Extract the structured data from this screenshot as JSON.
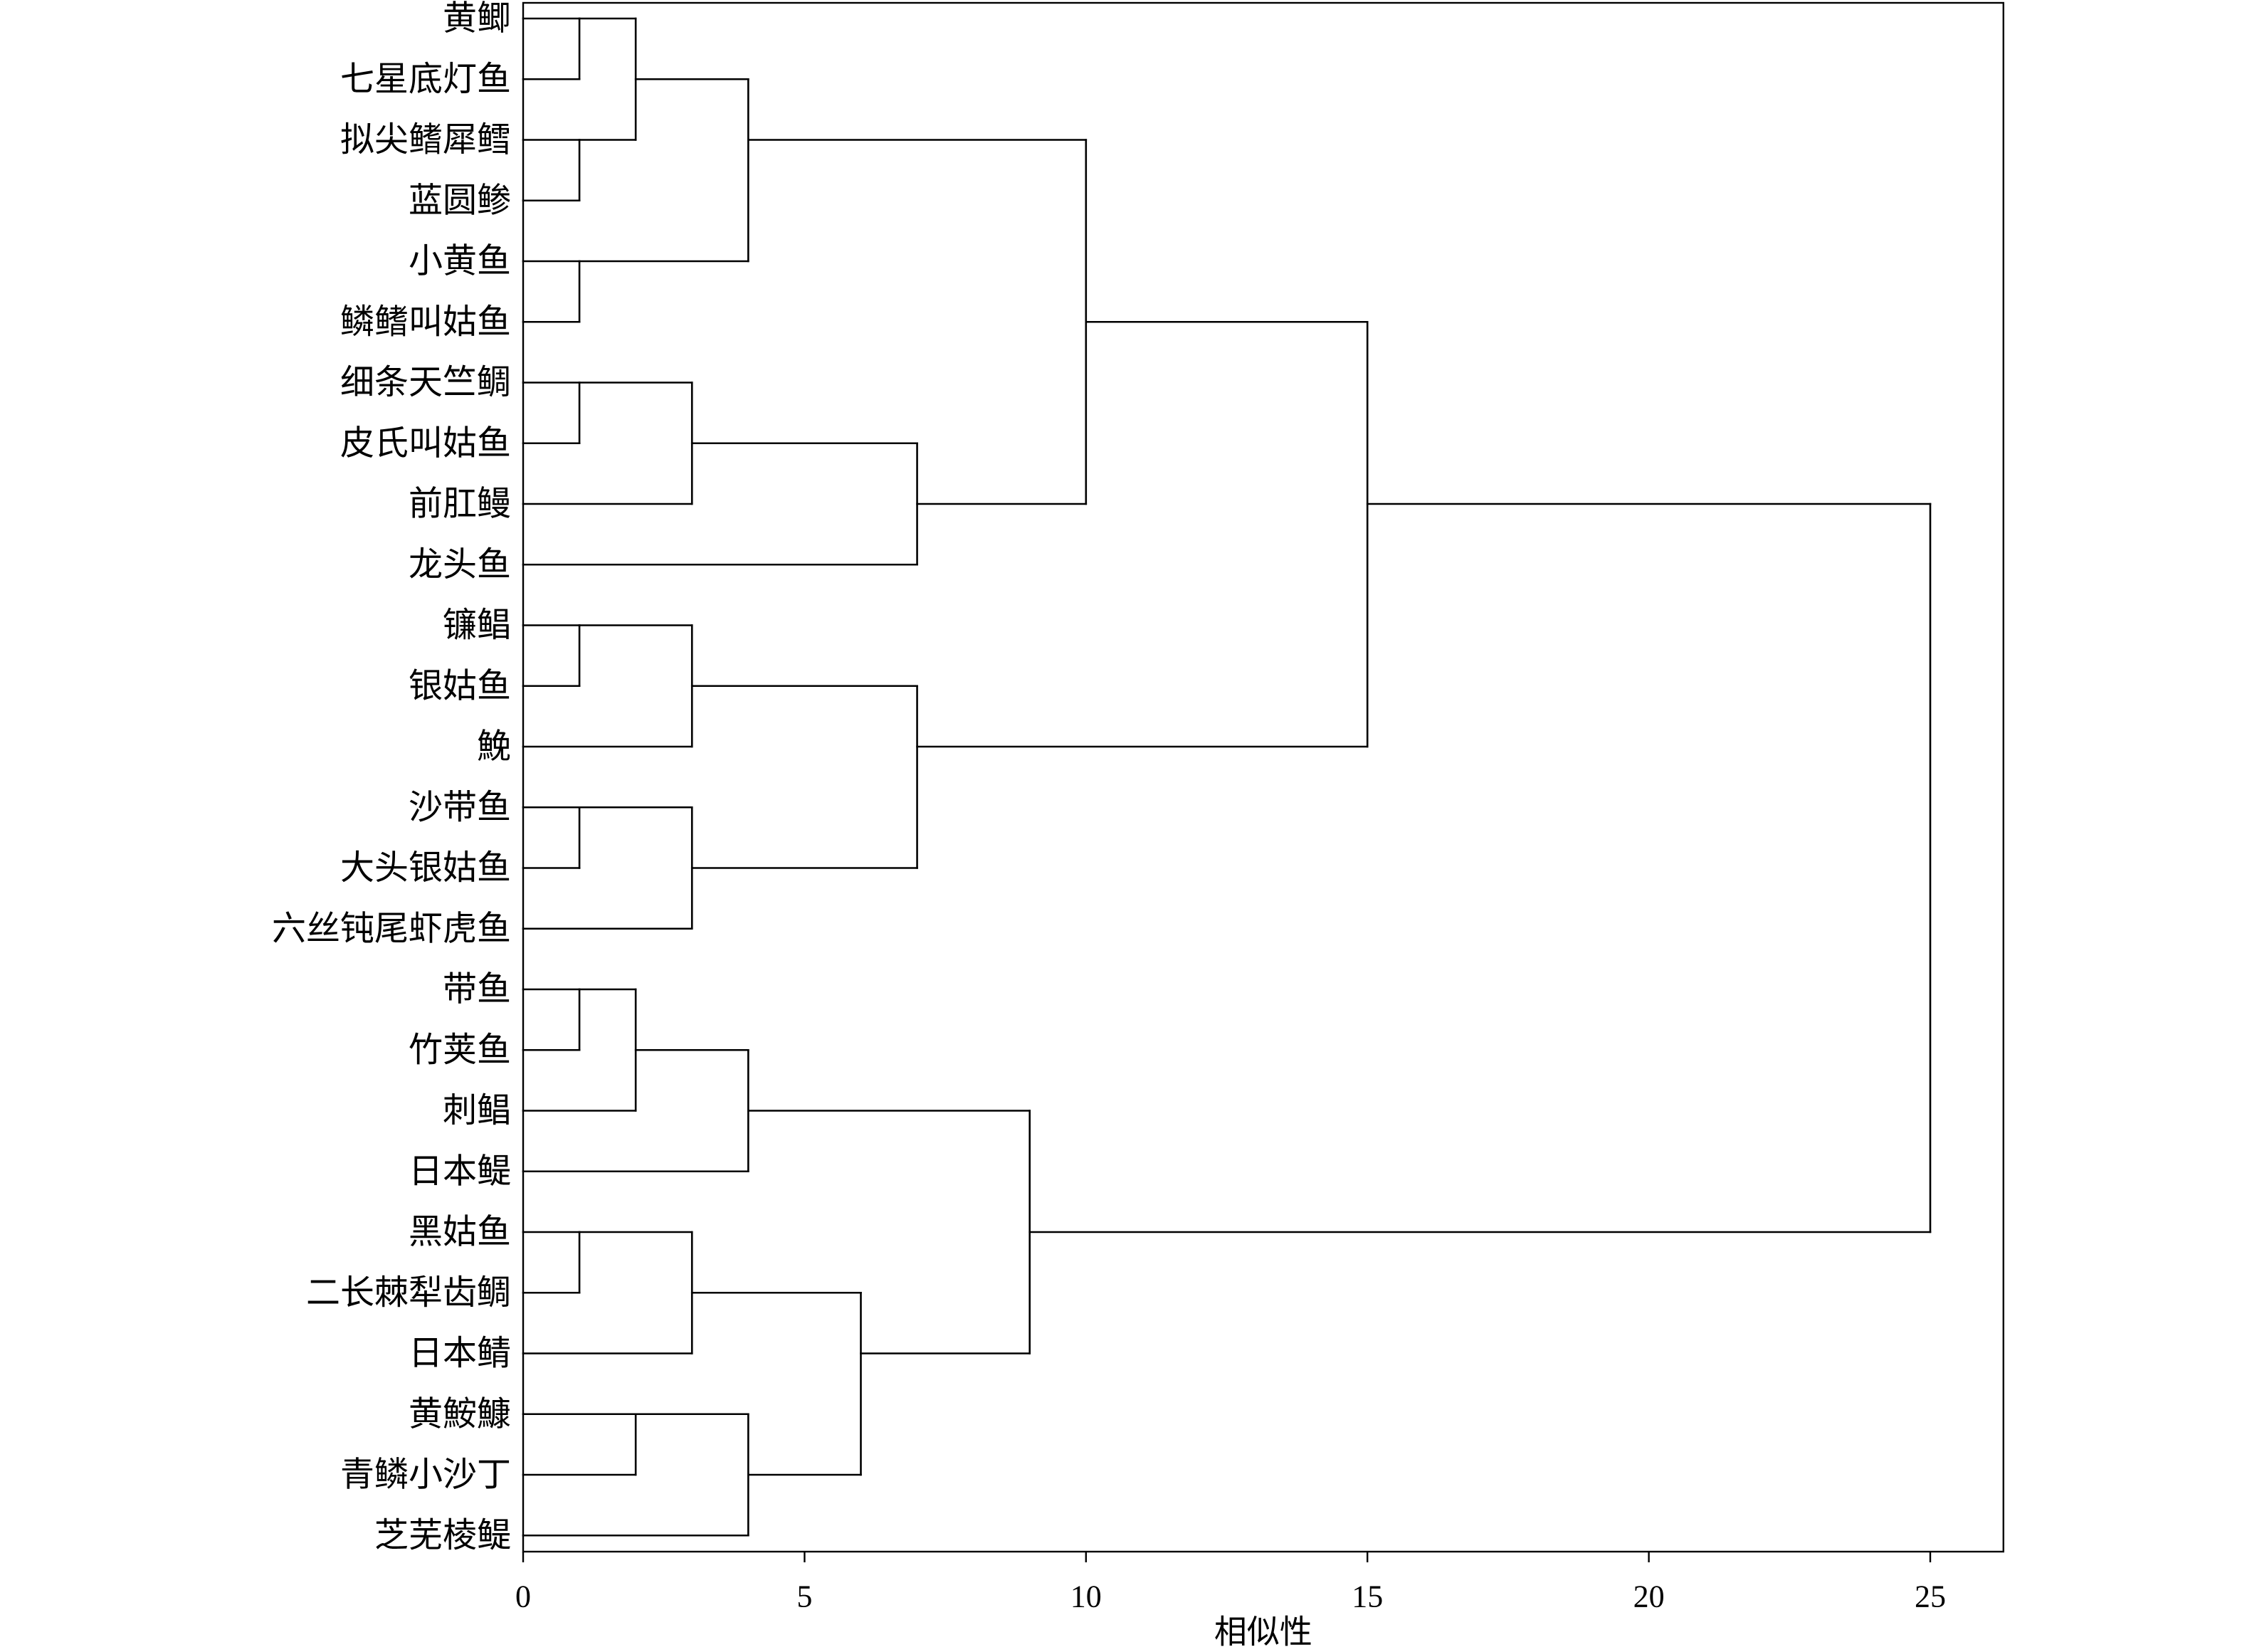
{
  "chart_data": {
    "type": "dendrogram",
    "orientation": "horizontal",
    "xlabel": "相似性",
    "xlim": [
      0,
      26.3
    ],
    "xticks": [
      0,
      5,
      10,
      15,
      20,
      25
    ],
    "leaves": [
      "黄鲫",
      "七星底灯鱼",
      "拟尖鳍犀鳕",
      "蓝圆鲹",
      "小黄鱼",
      "鳞鳍叫姑鱼",
      "细条天竺鲷",
      "皮氏叫姑鱼",
      "前肛鳗",
      "龙头鱼",
      "镰鲳",
      "银姑鱼",
      "鮸",
      "沙带鱼",
      "大头银姑鱼",
      "六丝钝尾虾虎鱼",
      "带鱼",
      "竹荚鱼",
      "刺鲳",
      "日本鳀",
      "黑姑鱼",
      "二长棘犁齿鲷",
      "日本鲭",
      "黄鮟鱇",
      "青鳞小沙丁",
      "芝芜棱鳀"
    ],
    "tree": {
      "height": 25,
      "children": [
        {
          "height": 15,
          "children": [
            {
              "height": 10,
              "children": [
                {
                  "height": 4,
                  "children": [
                    {
                      "height": 2,
                      "children": [
                        {
                          "height": 1,
                          "children": [
                            0,
                            1
                          ]
                        },
                        {
                          "height": 1,
                          "children": [
                            2,
                            3
                          ]
                        }
                      ]
                    },
                    {
                      "height": 1,
                      "children": [
                        4,
                        5
                      ]
                    }
                  ]
                },
                {
                  "height": 7,
                  "children": [
                    {
                      "height": 3,
                      "children": [
                        {
                          "height": 1,
                          "children": [
                            6,
                            7
                          ]
                        },
                        8
                      ]
                    },
                    9
                  ]
                }
              ]
            },
            {
              "height": 7,
              "children": [
                {
                  "height": 3,
                  "children": [
                    {
                      "height": 1,
                      "children": [
                        10,
                        11
                      ]
                    },
                    12
                  ]
                },
                {
                  "height": 3,
                  "children": [
                    {
                      "height": 1,
                      "children": [
                        13,
                        14
                      ]
                    },
                    15
                  ]
                }
              ]
            }
          ]
        },
        {
          "height": 9,
          "children": [
            {
              "height": 4,
              "children": [
                {
                  "height": 2,
                  "children": [
                    {
                      "height": 1,
                      "children": [
                        16,
                        17
                      ]
                    },
                    18
                  ]
                },
                19
              ]
            },
            {
              "height": 6,
              "children": [
                {
                  "height": 3,
                  "children": [
                    {
                      "height": 1,
                      "children": [
                        20,
                        21
                      ]
                    },
                    22
                  ]
                },
                {
                  "height": 4,
                  "children": [
                    {
                      "height": 2,
                      "children": [
                        23,
                        24
                      ]
                    },
                    25
                  ]
                }
              ]
            }
          ]
        }
      ]
    }
  },
  "colors": {
    "lines": "#000000",
    "text": "#000000",
    "background": "#ffffff"
  }
}
